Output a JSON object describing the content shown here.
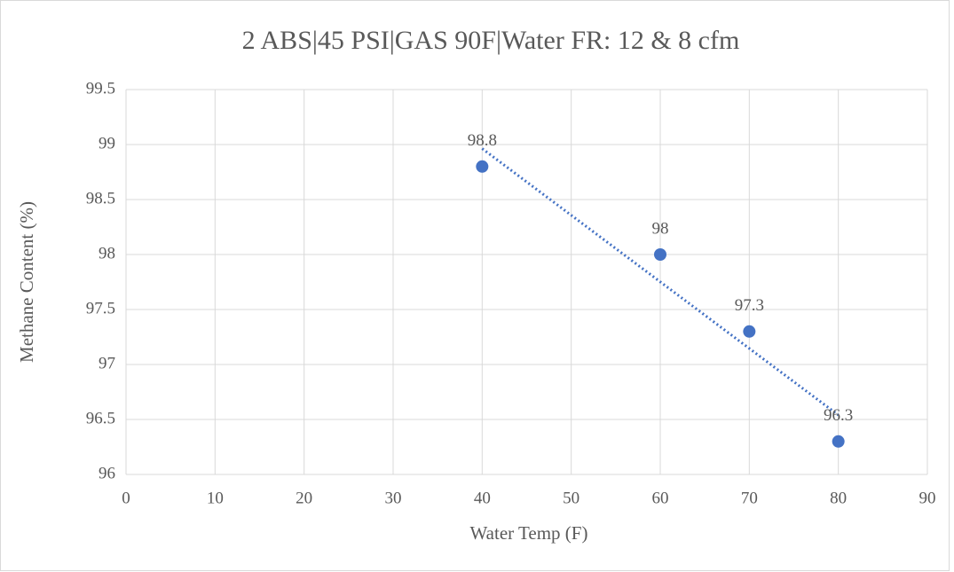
{
  "chart_data": {
    "type": "scatter",
    "title": "2 ABS|45 PSI|GAS 90F|Water FR: 12 & 8 cfm",
    "x_label": "Water Temp (F)",
    "y_label": "Methane Content (%)",
    "series": [
      {
        "name": "Methane Content",
        "color": "#4472c4",
        "x": [
          40,
          60,
          70,
          80
        ],
        "values": [
          98.8,
          98,
          97.3,
          96.3
        ]
      }
    ],
    "trendline": "linear",
    "xlim": [
      0,
      90
    ],
    "xticks": [
      0,
      10,
      20,
      30,
      40,
      50,
      60,
      70,
      80,
      90
    ],
    "ylim": [
      96,
      99.5
    ],
    "yticks": [
      96,
      96.5,
      97,
      97.5,
      98,
      98.5,
      99,
      99.5
    ],
    "grid": true,
    "data_labels": true
  }
}
